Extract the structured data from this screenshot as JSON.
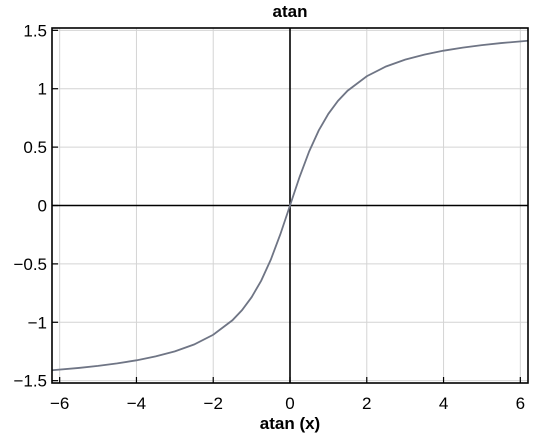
{
  "chart_data": {
    "type": "line",
    "title": "atan",
    "xlabel": "atan (x)",
    "ylabel": "",
    "xlim": [
      -6.2,
      6.2
    ],
    "ylim": [
      -1.52,
      1.52
    ],
    "xticks": [
      -6,
      -4,
      -2,
      0,
      2,
      4,
      6
    ],
    "xtick_labels": [
      "−6",
      "−4",
      "−2",
      "0",
      "2",
      "4",
      "6"
    ],
    "yticks": [
      -1.5,
      -1,
      -0.5,
      0,
      0.5,
      1,
      1.5
    ],
    "ytick_labels": [
      "−1.5",
      "−1",
      "−0.5",
      "0",
      "0.5",
      "1",
      "1.5"
    ],
    "grid": true,
    "series": [
      {
        "color": "#6f7585",
        "x": [
          -6.2,
          -5.5,
          -5,
          -4.5,
          -4,
          -3.5,
          -3,
          -2.5,
          -2,
          -1.5,
          -1.25,
          -1,
          -0.75,
          -0.5,
          -0.25,
          0,
          0.25,
          0.5,
          0.75,
          1,
          1.25,
          1.5,
          2,
          2.5,
          3,
          3.5,
          4,
          4.5,
          5,
          5.5,
          6.2
        ],
        "y": [
          -1.4109,
          -1.3909,
          -1.3734,
          -1.3521,
          -1.3258,
          -1.2925,
          -1.249,
          -1.1903,
          -1.1071,
          -0.9828,
          -0.8961,
          -0.7854,
          -0.6435,
          -0.4636,
          -0.245,
          0,
          0.245,
          0.4636,
          0.6435,
          0.7854,
          0.8961,
          0.9828,
          1.1071,
          1.1903,
          1.249,
          1.2925,
          1.3258,
          1.3521,
          1.3734,
          1.3909,
          1.4109
        ]
      }
    ]
  }
}
